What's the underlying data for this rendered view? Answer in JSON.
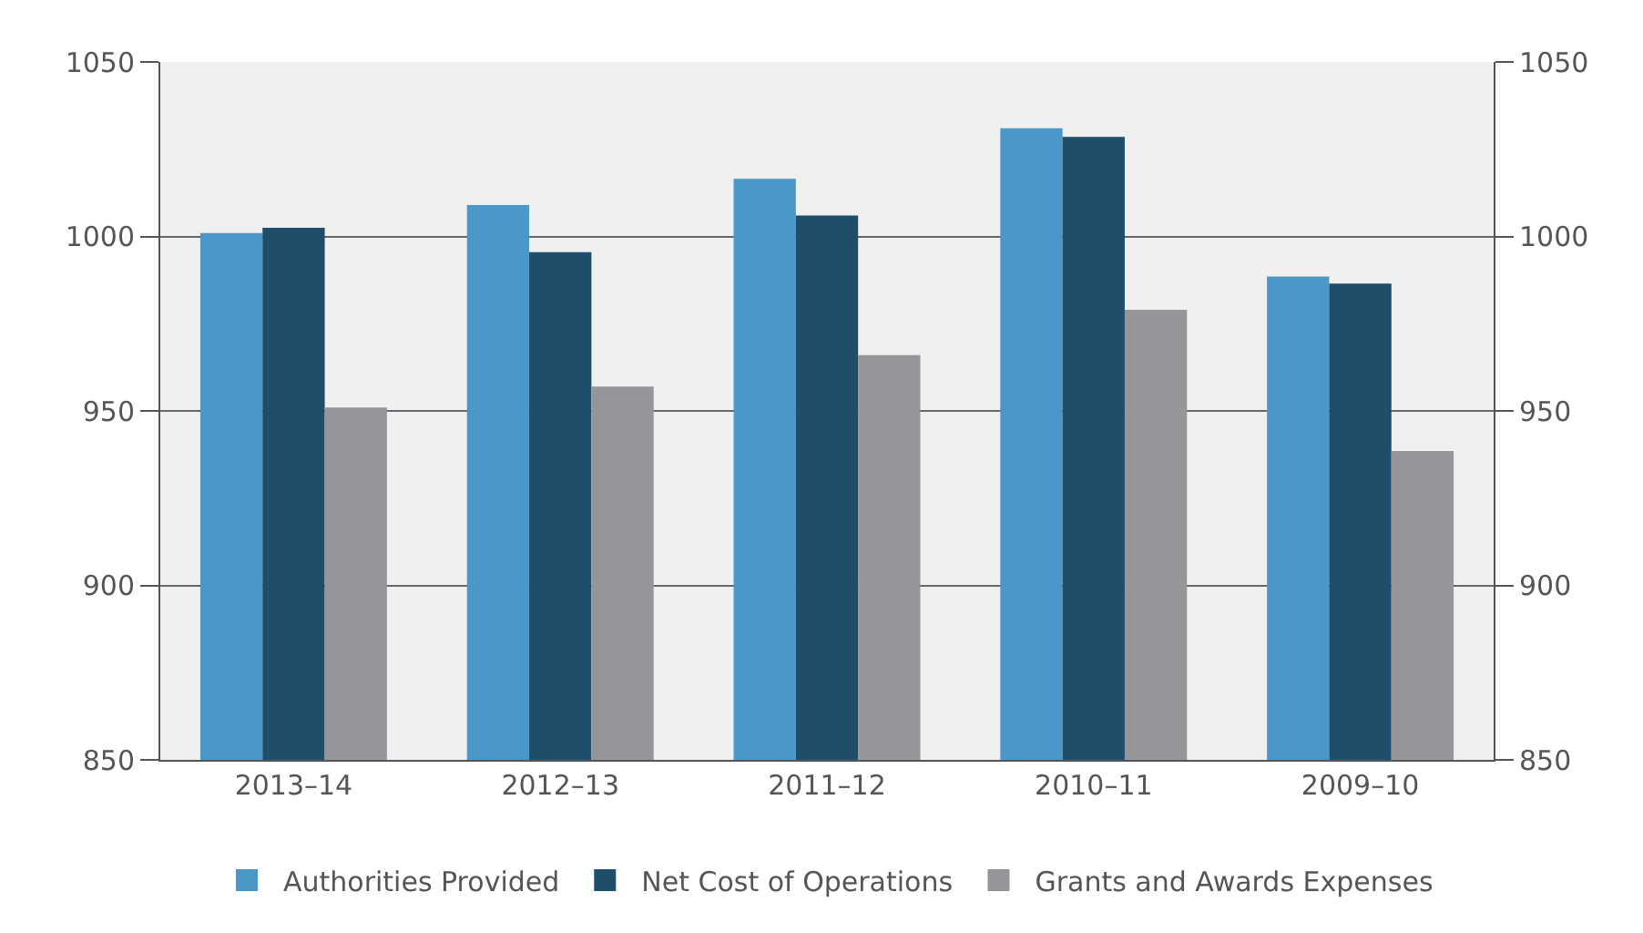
{
  "chart_data": {
    "type": "bar",
    "categories": [
      "2013–14",
      "2012–13",
      "2011–12",
      "2010–11",
      "2009–10"
    ],
    "series": [
      {
        "name": "Authorities Provided",
        "color": "#4a98c9",
        "values": [
          1001,
          1009,
          1016.5,
          1031,
          988.5
        ]
      },
      {
        "name": "Net Cost of Operations",
        "color": "#1f4e6b",
        "values": [
          1002.5,
          995.5,
          1006,
          1028.5,
          986.5
        ]
      },
      {
        "name": "Grants and Awards Expenses",
        "color": "#959699",
        "values": [
          951,
          957,
          966,
          979,
          938.5
        ]
      }
    ],
    "ylim": [
      850,
      1050
    ],
    "yticks": [
      850,
      900,
      950,
      1000,
      1050
    ],
    "y2lim": [
      850,
      1050
    ],
    "y2ticks": [
      850,
      900,
      950,
      1000,
      1050
    ],
    "grid": "y",
    "legend": "bottom"
  }
}
